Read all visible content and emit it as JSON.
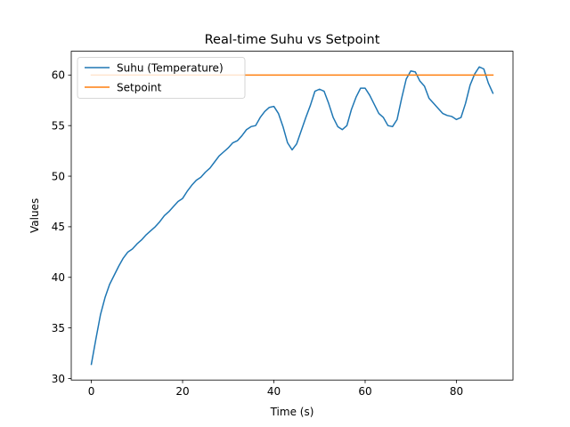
{
  "chart_data": {
    "type": "line",
    "title": "Real-time Suhu vs Setpoint",
    "xlabel": "Time (s)",
    "ylabel": "Values",
    "xlim": [
      -4.4,
      92.4
    ],
    "ylim": [
      29.85,
      62.35
    ],
    "xticks": [
      0,
      20,
      40,
      60,
      80
    ],
    "yticks": [
      30,
      35,
      40,
      45,
      50,
      55,
      60
    ],
    "grid": false,
    "legend_position": "top-left",
    "series": [
      {
        "name": "Suhu (Temperature)",
        "color": "#1f77b4",
        "x": [
          0,
          1,
          2,
          3,
          4,
          5,
          6,
          7,
          8,
          9,
          10,
          11,
          12,
          13,
          14,
          15,
          16,
          17,
          18,
          19,
          20,
          21,
          22,
          23,
          24,
          25,
          26,
          27,
          28,
          29,
          30,
          31,
          32,
          33,
          34,
          35,
          36,
          37,
          38,
          39,
          40,
          41,
          42,
          43,
          44,
          45,
          46,
          47,
          48,
          49,
          50,
          51,
          52,
          53,
          54,
          55,
          56,
          57,
          58,
          59,
          60,
          61,
          62,
          63,
          64,
          65,
          66,
          67,
          68,
          69,
          70,
          71,
          72,
          73,
          74,
          75,
          76,
          77,
          78,
          79,
          80,
          81,
          82,
          83,
          84,
          85,
          86,
          87,
          88
        ],
        "y": [
          31.4,
          33.9,
          36.3,
          38.0,
          39.3,
          40.2,
          41.1,
          41.9,
          42.5,
          42.8,
          43.3,
          43.7,
          44.2,
          44.6,
          45.0,
          45.5,
          46.1,
          46.5,
          47.0,
          47.5,
          47.8,
          48.5,
          49.1,
          49.6,
          49.9,
          50.4,
          50.8,
          51.4,
          52.0,
          52.4,
          52.8,
          53.3,
          53.5,
          54.0,
          54.6,
          54.9,
          55.0,
          55.8,
          56.4,
          56.8,
          56.9,
          56.2,
          54.9,
          53.3,
          52.6,
          53.2,
          54.5,
          55.8,
          57.0,
          58.4,
          58.6,
          58.4,
          57.2,
          55.8,
          54.9,
          54.6,
          55.0,
          56.6,
          57.8,
          58.7,
          58.7,
          58.0,
          57.1,
          56.2,
          55.8,
          55.0,
          54.9,
          55.6,
          57.7,
          59.6,
          60.4,
          60.3,
          59.4,
          58.9,
          57.7,
          57.2,
          56.7,
          56.2,
          56.0,
          55.9,
          55.6,
          55.8,
          57.2,
          59.0,
          60.1,
          60.8,
          60.6,
          59.2,
          58.2
        ]
      },
      {
        "name": "Setpoint",
        "color": "#ff7f0e",
        "x": [
          0,
          88
        ],
        "y": [
          60,
          60
        ]
      }
    ]
  }
}
